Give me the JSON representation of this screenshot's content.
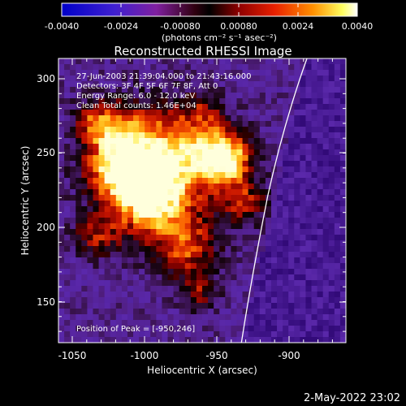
{
  "colorbar": {
    "ticks": [
      "-0.0040",
      "-0.0024",
      "-0.00080",
      "0.00080",
      "0.0024",
      "0.0040"
    ],
    "unit_label": "(photons cm⁻² s⁻¹ asec⁻²)"
  },
  "plot": {
    "title": "Reconstructed RHESSI Image",
    "xlabel": "Heliocentric X (arcsec)",
    "ylabel": "Heliocentric Y (arcsec)",
    "x_ticks": [
      "-1050",
      "-1000",
      "-950",
      "-900"
    ],
    "y_ticks": [
      "300",
      "250",
      "200",
      "150"
    ],
    "info_lines": [
      "27-Jun-2003 21:39:04.000 to 21:43:16.000",
      "Detectors: 3F 4F 5F 6F 7F 8F, Att 0",
      "Energy Range: 6.0 - 12.0 keV",
      "Clean    Total counts: 1.46E+04"
    ],
    "peak_label": "Position of Peak = [-950,246]"
  },
  "footer": {
    "timestamp": "2-May-2022 23:02"
  }
}
